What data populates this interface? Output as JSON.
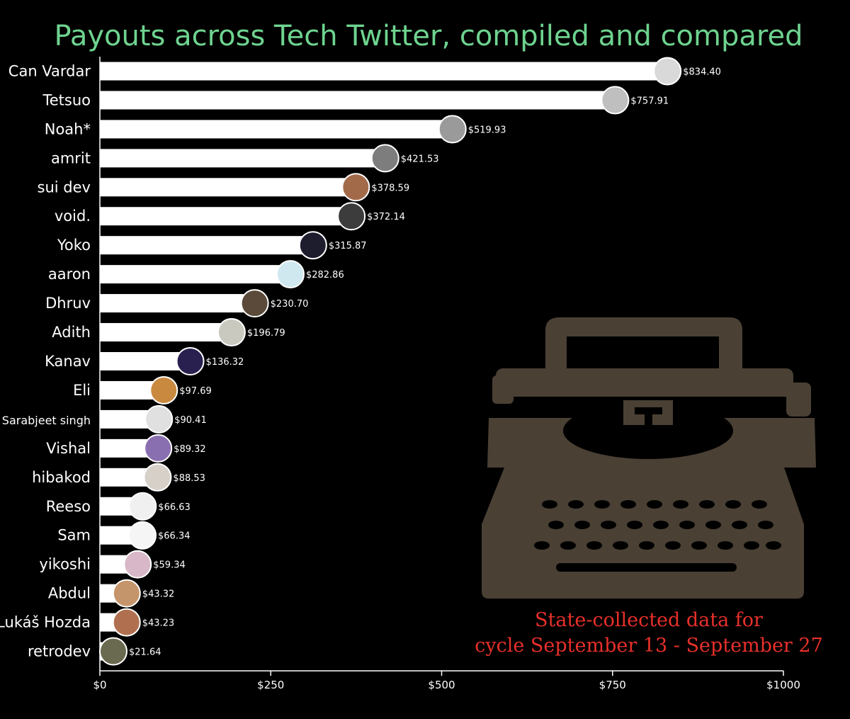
{
  "chart_data": {
    "type": "bar",
    "orientation": "horizontal",
    "title": "Payouts across Tech Twitter, compiled and compared",
    "categories": [
      "Can Vardar",
      "Tetsuo",
      "Noah*",
      "amrit",
      "sui dev",
      "void.",
      "Yoko",
      "aaron",
      "Dhruv",
      "Adith",
      "Kanav",
      "Eli",
      "Sarabjeet singh",
      "Vishal",
      "hibakod",
      "Reeso",
      "Sam",
      "yikoshi",
      "Abdul",
      "Lukáš Hozda",
      "retrodev"
    ],
    "values": [
      834.4,
      757.91,
      519.93,
      421.53,
      378.59,
      372.14,
      315.87,
      282.86,
      230.7,
      196.79,
      136.32,
      97.69,
      90.41,
      89.32,
      88.53,
      66.63,
      66.34,
      59.34,
      43.32,
      43.23,
      21.64
    ],
    "value_labels": [
      "$834.40",
      "$757.91",
      "$519.93",
      "$421.53",
      "$378.59",
      "$372.14",
      "$315.87",
      "$282.86",
      "$230.70",
      "$196.79",
      "$136.32",
      "$97.69",
      "$90.41",
      "$89.32",
      "$88.53",
      "$66.63",
      "$66.34",
      "$59.34",
      "$43.32",
      "$43.23",
      "$21.64"
    ],
    "xlim": [
      0,
      1000
    ],
    "xticks": [
      0,
      250,
      500,
      750,
      1000
    ],
    "xtick_labels": [
      "$0",
      "$250",
      "$500",
      "$750",
      "$1000"
    ],
    "annotation_lines": [
      "State-collected data for",
      "cycle September 13 - September 27"
    ],
    "grid": false,
    "legend": "none"
  },
  "colors": {
    "background": "#000000",
    "bar": "#ffffff",
    "title": "#6ed38f",
    "annotation": "#e8302a",
    "typewriter": "#4a4034"
  },
  "icons": [
    "avatar-icon",
    "typewriter-icon"
  ]
}
